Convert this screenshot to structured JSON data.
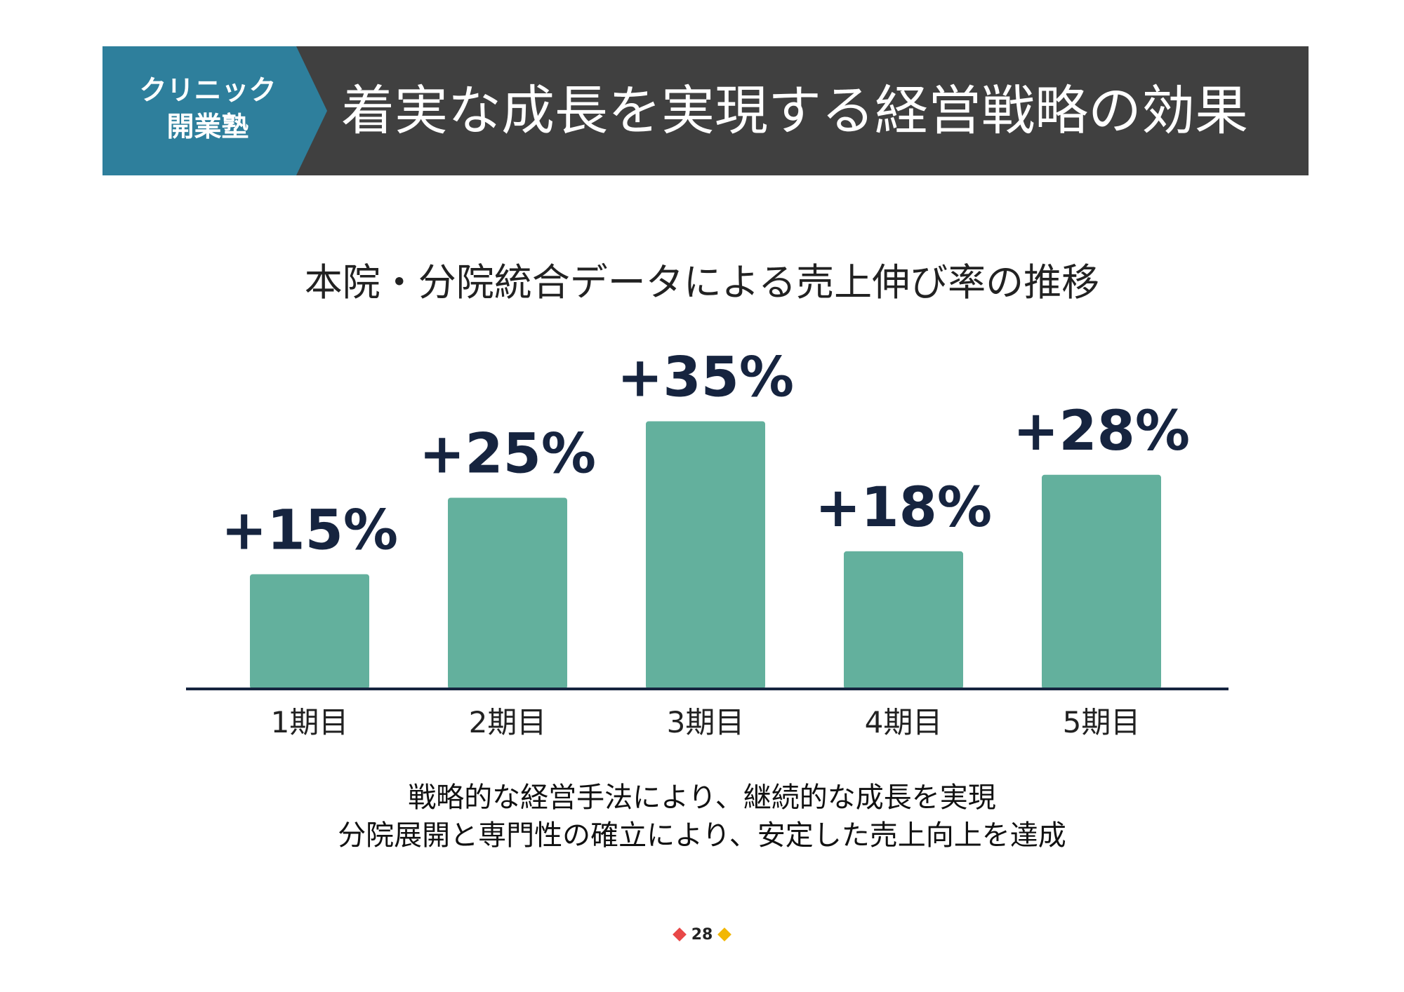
{
  "header": {
    "tag_line1": "クリニック",
    "tag_line2": "開業塾",
    "title": "着実な成長を実現する経営戦略の効果"
  },
  "chart_data": {
    "type": "bar",
    "title": "本院・分院統合データによる売上伸び率の推移",
    "categories": [
      "1期目",
      "2期目",
      "3期目",
      "4期目",
      "5期目"
    ],
    "values": [
      15,
      25,
      35,
      18,
      28
    ],
    "value_labels": [
      "+15%",
      "+25%",
      "+35%",
      "+18%",
      "+28%"
    ],
    "bar_color": "#63b09d",
    "label_color": "#16243f",
    "grid": false
  },
  "caption": {
    "line1": "戦略的な経営手法により、継続的な成長を実現",
    "line2": "分院展開と専門性の確立により、安定した売上向上を達成"
  },
  "page_number": "28",
  "colors": {
    "header_bg": "#404040",
    "tag_bg": "#2e7f9c",
    "diamond_left": "#e84848",
    "diamond_right": "#f2b705"
  }
}
